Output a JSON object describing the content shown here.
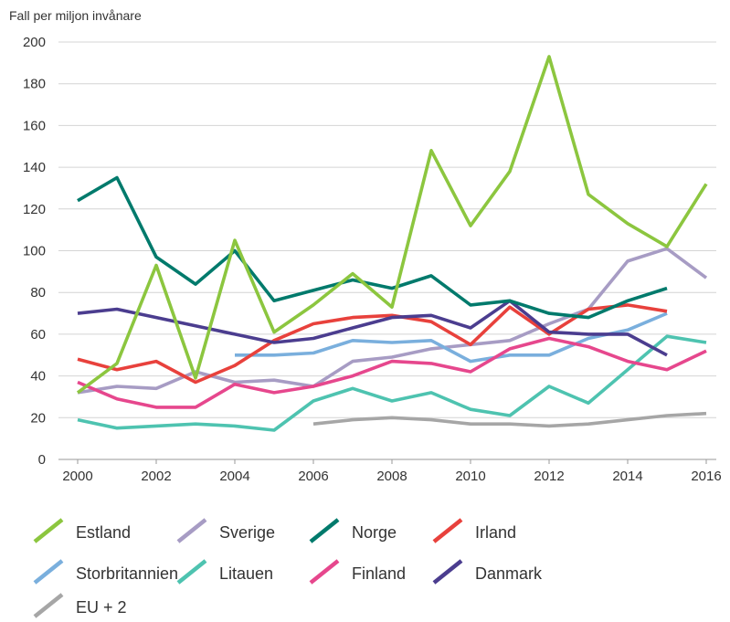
{
  "chart_data": {
    "type": "line",
    "ylabel": "Fall per miljon invånare",
    "xlabel": "",
    "x": [
      2000,
      2001,
      2002,
      2003,
      2004,
      2005,
      2006,
      2007,
      2008,
      2009,
      2010,
      2011,
      2012,
      2013,
      2014,
      2015,
      2016
    ],
    "xticks": [
      "2000",
      "2002",
      "2004",
      "2006",
      "2008",
      "2010",
      "2012",
      "2014",
      "2016"
    ],
    "yticks": [
      "0",
      "20",
      "40",
      "60",
      "80",
      "100",
      "120",
      "140",
      "160",
      "180",
      "200"
    ],
    "ylim": [
      0,
      200
    ],
    "xlim": [
      2000,
      2016
    ],
    "grid": "horizontal",
    "legend_position": "bottom",
    "series": [
      {
        "name": "Estland",
        "color": "#8cc63f",
        "values": [
          32,
          46,
          93,
          39,
          105,
          61,
          74,
          89,
          73,
          148,
          112,
          138,
          193,
          127,
          113,
          102,
          132
        ]
      },
      {
        "name": "Sverige",
        "color": "#a79cc4",
        "values": [
          32,
          35,
          34,
          42,
          37,
          38,
          35,
          47,
          49,
          53,
          55,
          57,
          65,
          72,
          95,
          101,
          87
        ]
      },
      {
        "name": "Norge",
        "color": "#007a6c",
        "values": [
          124,
          135,
          97,
          84,
          100,
          76,
          81,
          86,
          82,
          88,
          74,
          76,
          70,
          68,
          76,
          82,
          null
        ]
      },
      {
        "name": "Irland",
        "color": "#e8413c",
        "values": [
          48,
          43,
          47,
          37,
          45,
          57,
          65,
          68,
          69,
          66,
          55,
          73,
          60,
          72,
          74,
          71,
          null
        ]
      },
      {
        "name": "Storbritannien",
        "color": "#7aafdd",
        "values": [
          null,
          null,
          null,
          null,
          50,
          50,
          51,
          57,
          56,
          57,
          47,
          50,
          50,
          58,
          62,
          70,
          null
        ]
      },
      {
        "name": "Litauen",
        "color": "#4ec3b0",
        "values": [
          19,
          15,
          16,
          17,
          16,
          14,
          28,
          34,
          28,
          32,
          24,
          21,
          35,
          27,
          43,
          59,
          56
        ]
      },
      {
        "name": "Finland",
        "color": "#e6478d",
        "values": [
          37,
          29,
          25,
          25,
          36,
          32,
          35,
          40,
          47,
          46,
          42,
          53,
          58,
          54,
          47,
          43,
          52
        ]
      },
      {
        "name": "Danmark",
        "color": "#4b3d8f",
        "values": [
          70,
          72,
          68,
          64,
          60,
          56,
          58,
          63,
          68,
          69,
          63,
          76,
          61,
          60,
          60,
          50,
          null
        ]
      },
      {
        "name": "EU + 2",
        "color": "#a6a6a6",
        "values": [
          null,
          null,
          null,
          null,
          null,
          null,
          17,
          19,
          20,
          19,
          17,
          17,
          16,
          17,
          19,
          21,
          22
        ]
      }
    ]
  }
}
